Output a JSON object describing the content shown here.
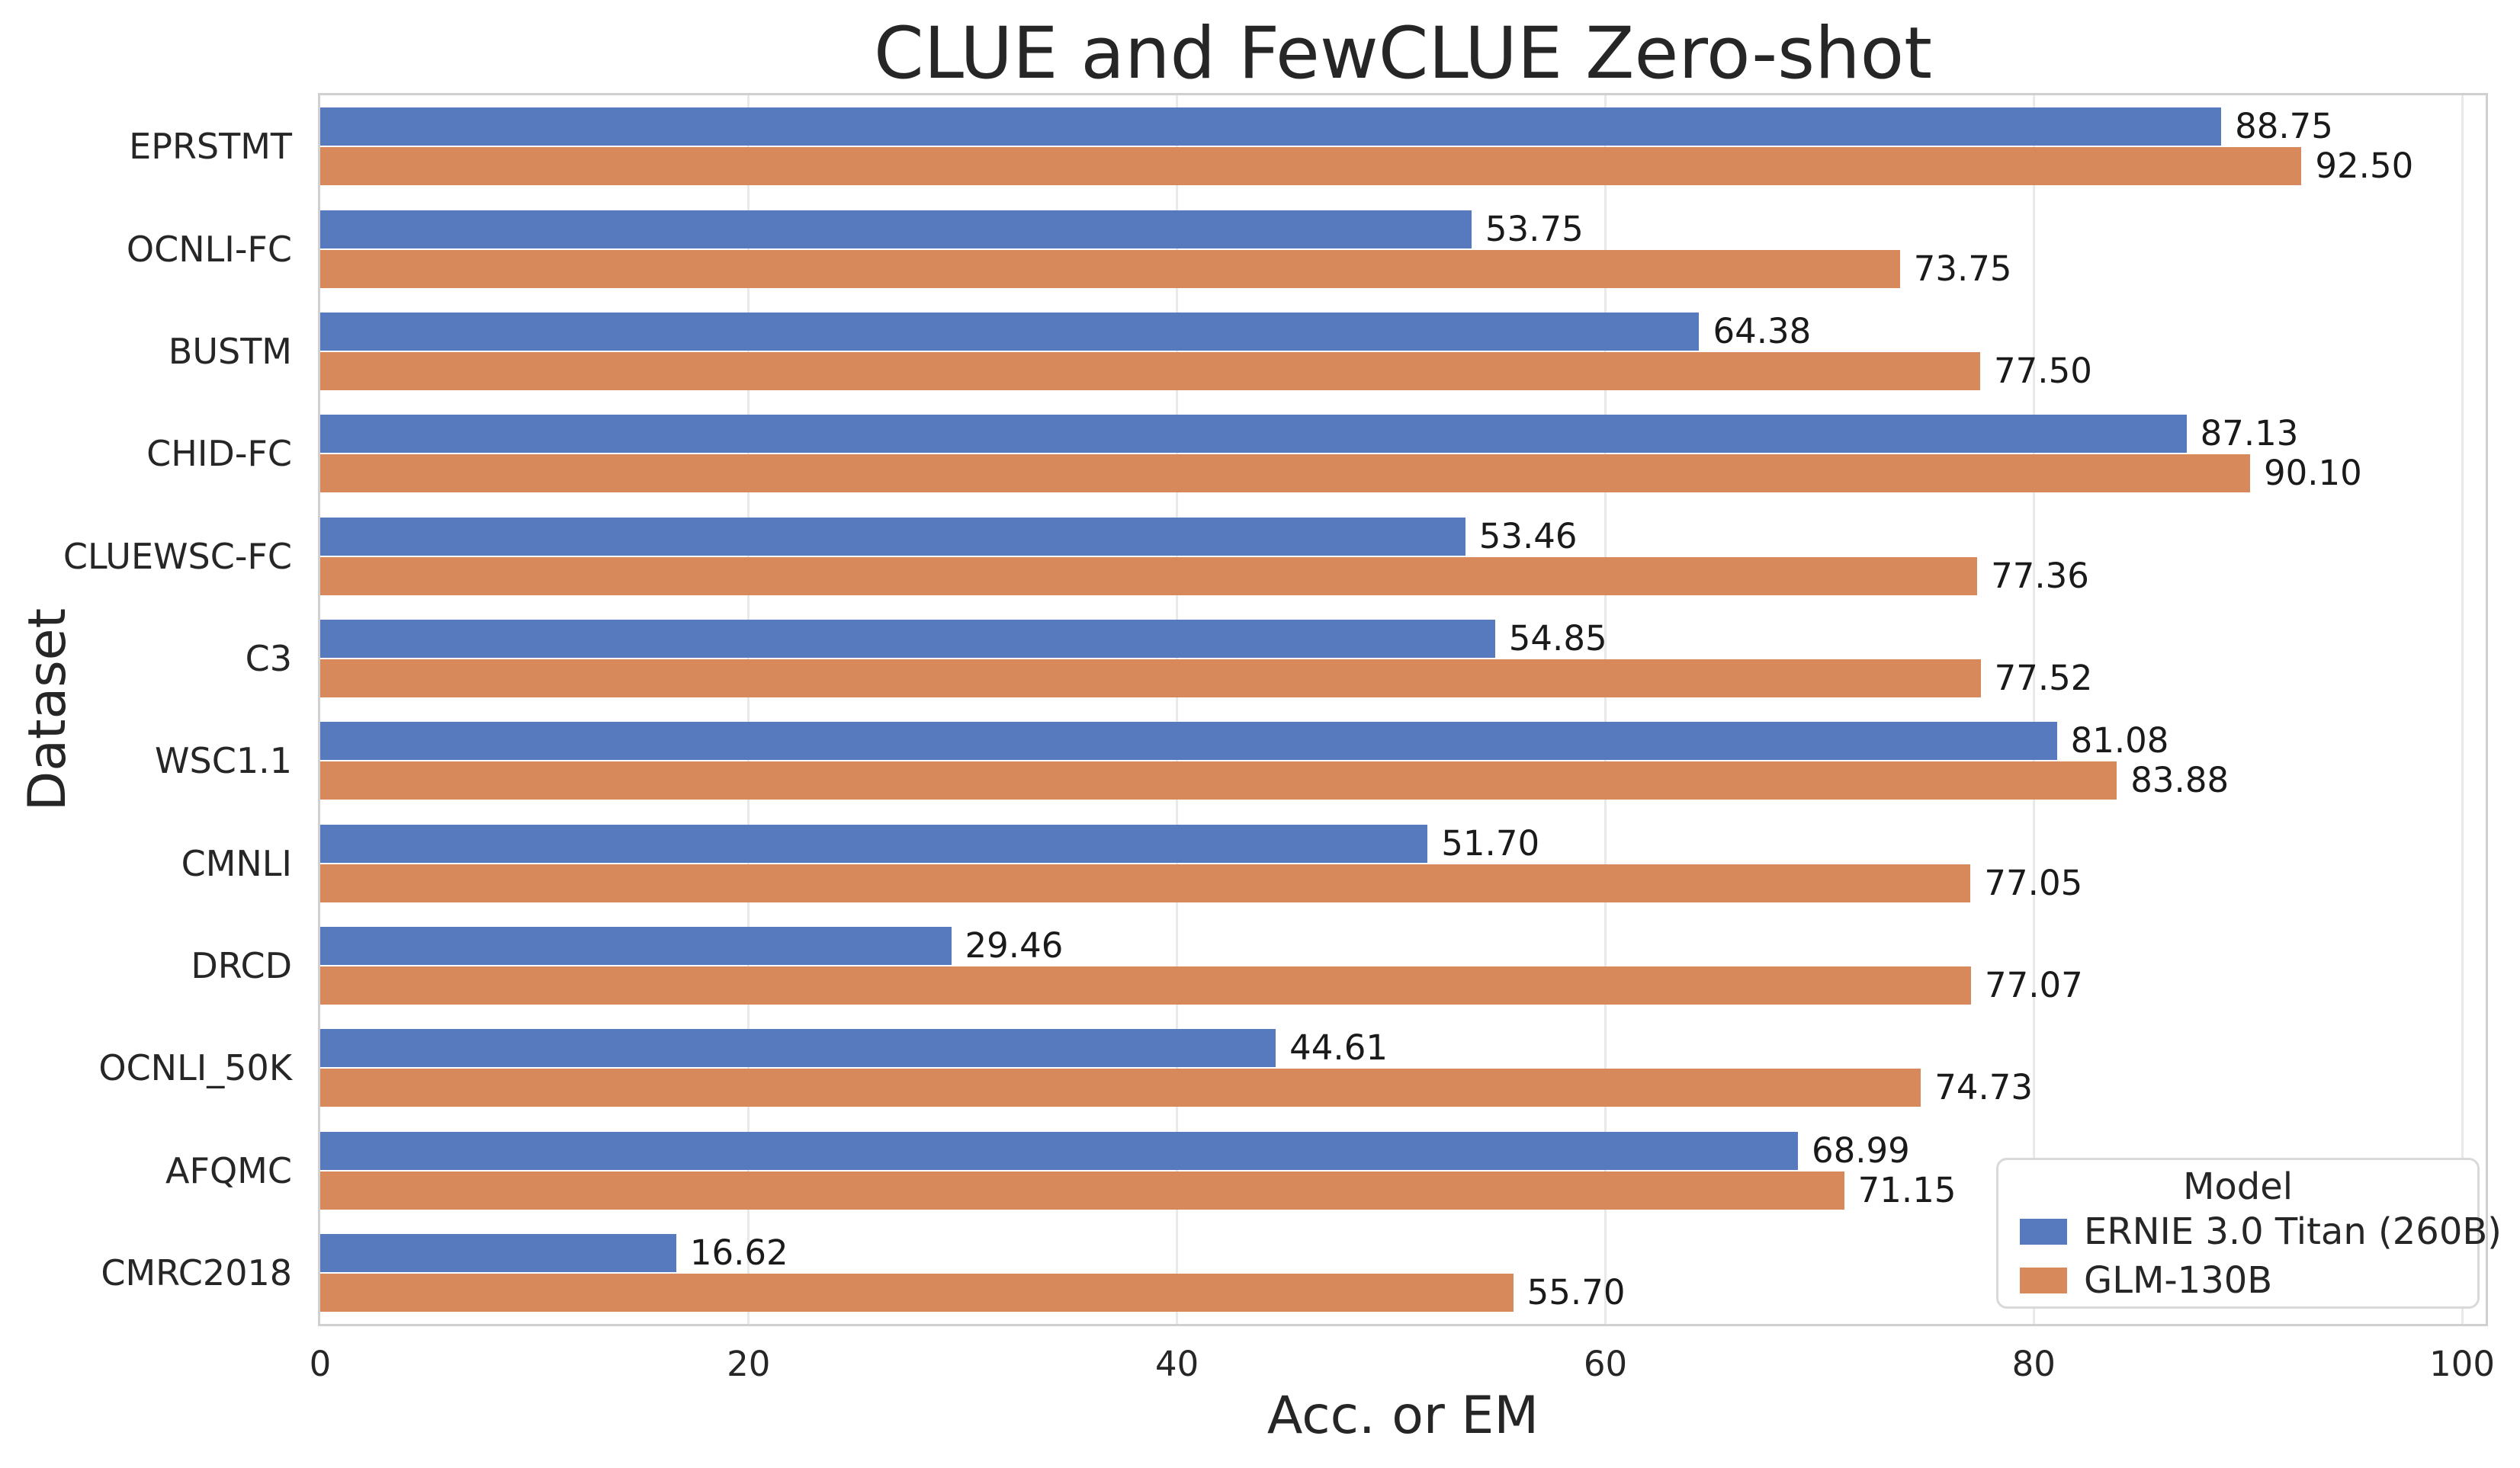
{
  "chart_data": {
    "type": "bar",
    "orientation": "horizontal",
    "title": "CLUE and FewCLUE Zero-shot",
    "xlabel": "Acc. or EM",
    "ylabel": "Dataset",
    "categories": [
      "EPRSTMT",
      "OCNLI-FC",
      "BUSTM",
      "CHID-FC",
      "CLUEWSC-FC",
      "C3",
      "WSC1.1",
      "CMNLI",
      "DRCD",
      "OCNLI_50K",
      "AFQMC",
      "CMRC2018"
    ],
    "series": [
      {
        "name": "ERNIE 3.0 Titan (260B)",
        "color": "#577abf",
        "values": [
          88.75,
          53.75,
          64.38,
          87.13,
          53.46,
          54.85,
          81.08,
          51.7,
          29.46,
          44.61,
          68.99,
          16.62
        ]
      },
      {
        "name": "GLM-130B",
        "color": "#d8895b",
        "values": [
          92.5,
          73.75,
          77.5,
          90.1,
          77.36,
          77.52,
          83.88,
          77.05,
          77.07,
          74.73,
          71.15,
          55.7
        ]
      }
    ],
    "xticks": [
      0,
      20,
      40,
      60,
      80,
      100
    ],
    "xlim": [
      0,
      101.1
    ],
    "bar_label_decimals": 2,
    "grid": true,
    "legend_title": "Model",
    "legend_position": "lower right",
    "colors": {
      "grid": "#e9e9e9",
      "spine": "#d0d0d0",
      "text": "#262626",
      "bar_label": "#1a1a1a"
    }
  }
}
